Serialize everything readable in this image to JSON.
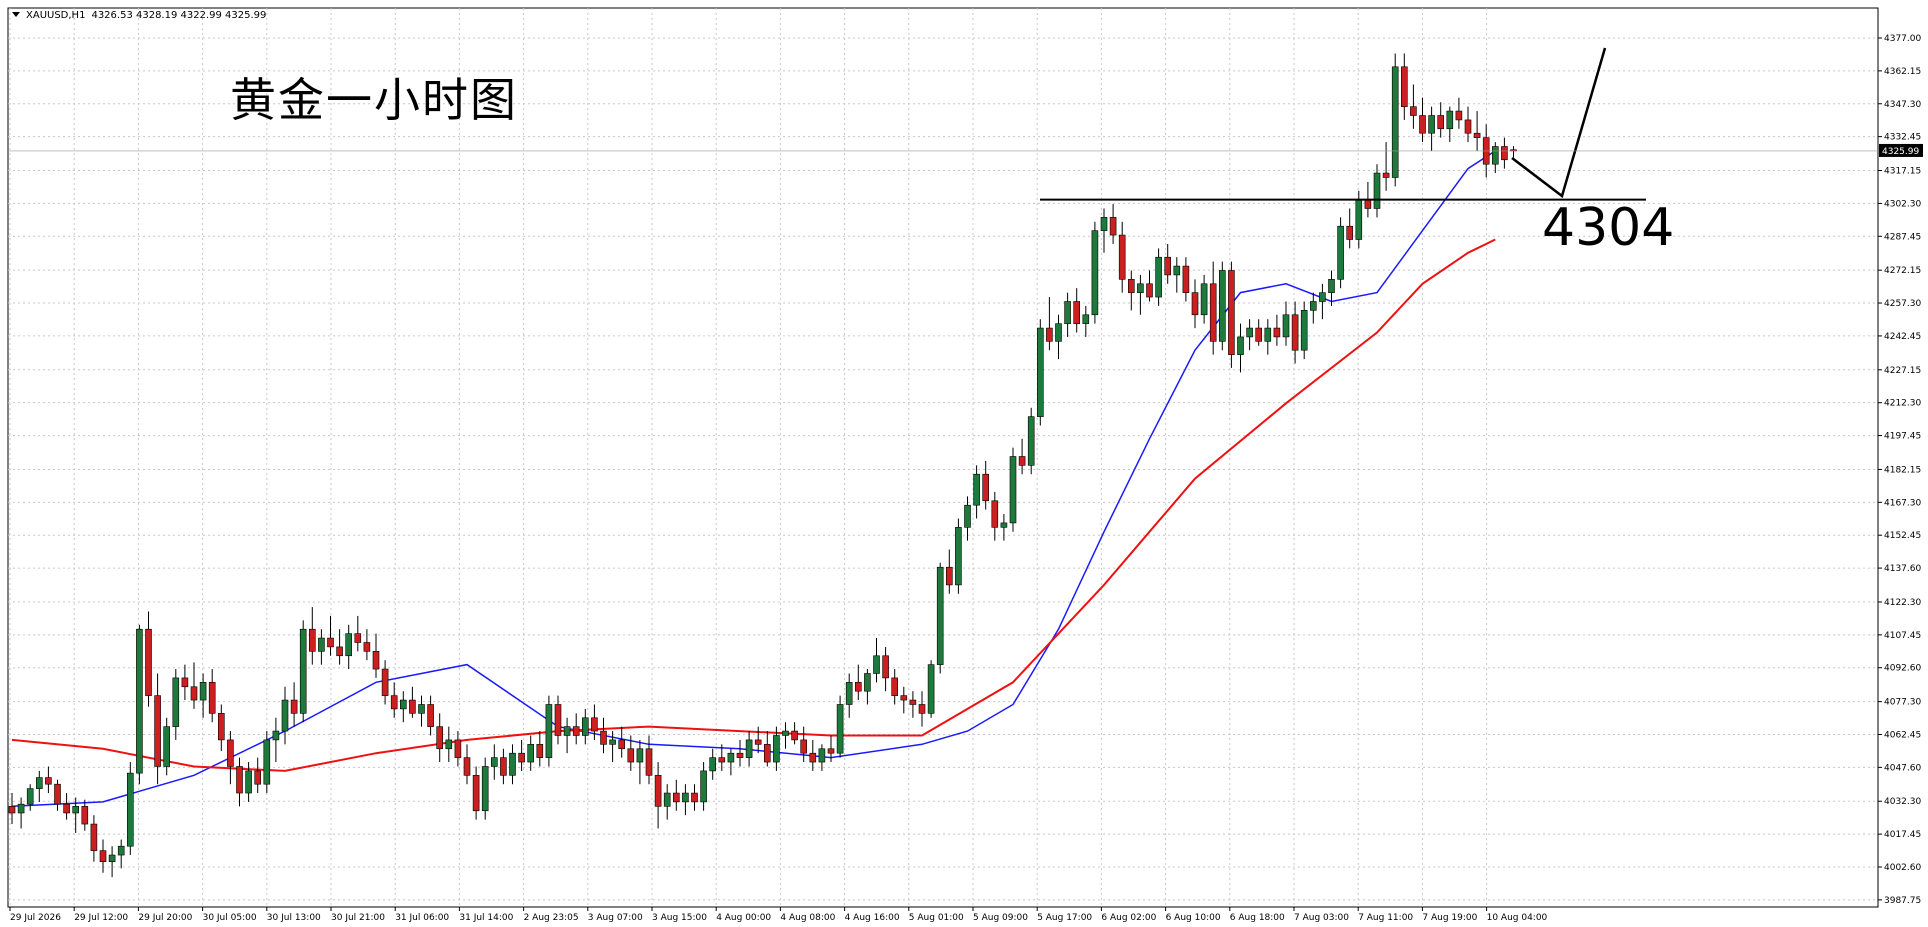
{
  "header": {
    "symbol": "XAUUSD,H1",
    "ohlc": "4326.53 4328.19 4322.99 4325.99"
  },
  "annotation": {
    "title": "黄金一小时图",
    "level_label": "4304"
  },
  "colors": {
    "bull_candle": "#1e7a3c",
    "bear_candle": "#cc1f1f",
    "ma_fast": "#1a1aff",
    "ma_slow": "#ee1111",
    "level_line": "#000000",
    "grid": "#c8c8c8",
    "price_tag_bg": "#000000"
  },
  "chart_data": {
    "type": "candlestick",
    "symbol": "XAUUSD",
    "timeframe": "H1",
    "ylim": [
      3987.7,
      4377.0
    ],
    "y_ticks": [
      "4377.00",
      "4362.15",
      "4347.30",
      "4332.45",
      "4317.15",
      "4302.30",
      "4287.45",
      "4272.15",
      "4257.30",
      "4242.45",
      "4227.15",
      "4212.30",
      "4197.45",
      "4182.15",
      "4167.30",
      "4152.45",
      "4137.60",
      "4122.30",
      "4107.45",
      "4092.60",
      "4077.30",
      "4062.45",
      "4047.60",
      "4032.30",
      "4017.45",
      "4002.60",
      "3987.75"
    ],
    "x_ticks": [
      "29 Jul 2026",
      "29 Jul 12:00",
      "29 Jul 20:00",
      "30 Jul 05:00",
      "30 Jul 13:00",
      "30 Jul 21:00",
      "31 Jul 06:00",
      "31 Jul 14:00",
      "2 Aug 23:05",
      "3 Aug 07:00",
      "3 Aug 15:00",
      "4 Aug 00:00",
      "4 Aug 08:00",
      "4 Aug 16:00",
      "5 Aug 01:00",
      "5 Aug 09:00",
      "5 Aug 17:00",
      "6 Aug 02:00",
      "6 Aug 10:00",
      "6 Aug 18:00",
      "7 Aug 03:00",
      "7 Aug 11:00",
      "7 Aug 19:00",
      "10 Aug 04:00"
    ],
    "current_price": 4325.99,
    "support_level": 4304,
    "grid": true,
    "candles": [
      [
        4030,
        4036,
        4022,
        4027
      ],
      [
        4027,
        4034,
        4020,
        4031
      ],
      [
        4031,
        4040,
        4028,
        4038
      ],
      [
        4038,
        4046,
        4032,
        4043
      ],
      [
        4043,
        4048,
        4036,
        4040
      ],
      [
        4040,
        4042,
        4028,
        4031
      ],
      [
        4031,
        4036,
        4024,
        4027
      ],
      [
        4027,
        4034,
        4018,
        4030
      ],
      [
        4030,
        4033,
        4019,
        4022
      ],
      [
        4022,
        4026,
        4005,
        4010
      ],
      [
        4010,
        4015,
        4000,
        4005
      ],
      [
        4005,
        4012,
        3998,
        4008
      ],
      [
        4008,
        4015,
        4002,
        4012
      ],
      [
        4012,
        4050,
        4008,
        4045
      ],
      [
        4045,
        4112,
        4040,
        4110
      ],
      [
        4110,
        4118,
        4075,
        4080
      ],
      [
        4080,
        4090,
        4040,
        4048
      ],
      [
        4048,
        4070,
        4044,
        4066
      ],
      [
        4066,
        4092,
        4060,
        4088
      ],
      [
        4088,
        4094,
        4078,
        4084
      ],
      [
        4084,
        4095,
        4074,
        4078
      ],
      [
        4078,
        4090,
        4070,
        4086
      ],
      [
        4086,
        4092,
        4068,
        4072
      ],
      [
        4072,
        4076,
        4055,
        4060
      ],
      [
        4060,
        4064,
        4040,
        4048
      ],
      [
        4048,
        4052,
        4030,
        4036
      ],
      [
        4036,
        4050,
        4032,
        4046
      ],
      [
        4046,
        4052,
        4036,
        4040
      ],
      [
        4040,
        4064,
        4036,
        4060
      ],
      [
        4060,
        4070,
        4050,
        4064
      ],
      [
        4064,
        4084,
        4058,
        4078
      ],
      [
        4078,
        4086,
        4066,
        4072
      ],
      [
        4072,
        4114,
        4068,
        4110
      ],
      [
        4110,
        4120,
        4094,
        4100
      ],
      [
        4100,
        4110,
        4094,
        4106
      ],
      [
        4106,
        4116,
        4098,
        4102
      ],
      [
        4102,
        4110,
        4094,
        4098
      ],
      [
        4098,
        4112,
        4092,
        4108
      ],
      [
        4108,
        4116,
        4100,
        4104
      ],
      [
        4104,
        4110,
        4096,
        4100
      ],
      [
        4100,
        4108,
        4088,
        4092
      ],
      [
        4092,
        4096,
        4076,
        4080
      ],
      [
        4080,
        4086,
        4070,
        4074
      ],
      [
        4074,
        4082,
        4068,
        4078
      ],
      [
        4078,
        4084,
        4070,
        4072
      ],
      [
        4072,
        4080,
        4066,
        4076
      ],
      [
        4076,
        4080,
        4062,
        4066
      ],
      [
        4066,
        4072,
        4050,
        4056
      ],
      [
        4056,
        4066,
        4050,
        4060
      ],
      [
        4060,
        4064,
        4048,
        4052
      ],
      [
        4052,
        4058,
        4040,
        4044
      ],
      [
        4044,
        4048,
        4024,
        4028
      ],
      [
        4028,
        4052,
        4024,
        4048
      ],
      [
        4048,
        4058,
        4042,
        4052
      ],
      [
        4052,
        4056,
        4040,
        4044
      ],
      [
        4044,
        4058,
        4040,
        4054
      ],
      [
        4054,
        4060,
        4046,
        4050
      ],
      [
        4050,
        4062,
        4046,
        4058
      ],
      [
        4058,
        4064,
        4048,
        4052
      ],
      [
        4052,
        4080,
        4048,
        4076
      ],
      [
        4076,
        4080,
        4058,
        4062
      ],
      [
        4062,
        4070,
        4054,
        4066
      ],
      [
        4066,
        4072,
        4058,
        4062
      ],
      [
        4062,
        4074,
        4058,
        4070
      ],
      [
        4070,
        4076,
        4060,
        4064
      ],
      [
        4064,
        4070,
        4054,
        4058
      ],
      [
        4058,
        4064,
        4050,
        4060
      ],
      [
        4060,
        4066,
        4052,
        4056
      ],
      [
        4056,
        4062,
        4046,
        4050
      ],
      [
        4050,
        4060,
        4040,
        4056
      ],
      [
        4056,
        4062,
        4040,
        4044
      ],
      [
        4044,
        4050,
        4020,
        4030
      ],
      [
        4030,
        4040,
        4024,
        4036
      ],
      [
        4036,
        4042,
        4028,
        4032
      ],
      [
        4032,
        4040,
        4026,
        4036
      ],
      [
        4036,
        4040,
        4028,
        4032
      ],
      [
        4032,
        4050,
        4028,
        4046
      ],
      [
        4046,
        4056,
        4042,
        4052
      ],
      [
        4052,
        4058,
        4046,
        4050
      ],
      [
        4050,
        4056,
        4044,
        4054
      ],
      [
        4054,
        4060,
        4048,
        4052
      ],
      [
        4052,
        4064,
        4048,
        4060
      ],
      [
        4060,
        4066,
        4054,
        4058
      ],
      [
        4058,
        4064,
        4048,
        4050
      ],
      [
        4050,
        4066,
        4046,
        4062
      ],
      [
        4062,
        4068,
        4056,
        4064
      ],
      [
        4064,
        4068,
        4058,
        4060
      ],
      [
        4060,
        4066,
        4050,
        4054
      ],
      [
        4054,
        4060,
        4046,
        4050
      ],
      [
        4050,
        4058,
        4046,
        4056
      ],
      [
        4056,
        4062,
        4050,
        4054
      ],
      [
        4054,
        4080,
        4052,
        4076
      ],
      [
        4076,
        4090,
        4070,
        4086
      ],
      [
        4086,
        4094,
        4078,
        4082
      ],
      [
        4082,
        4092,
        4076,
        4090
      ],
      [
        4090,
        4106,
        4086,
        4098
      ],
      [
        4098,
        4102,
        4082,
        4088
      ],
      [
        4088,
        4092,
        4076,
        4080
      ],
      [
        4080,
        4084,
        4072,
        4078
      ],
      [
        4078,
        4082,
        4070,
        4076
      ],
      [
        4076,
        4082,
        4066,
        4072
      ],
      [
        4072,
        4096,
        4070,
        4094
      ],
      [
        4094,
        4140,
        4090,
        4138
      ],
      [
        4138,
        4146,
        4126,
        4130
      ],
      [
        4130,
        4160,
        4126,
        4156
      ],
      [
        4156,
        4170,
        4150,
        4166
      ],
      [
        4166,
        4184,
        4160,
        4180
      ],
      [
        4180,
        4186,
        4164,
        4168
      ],
      [
        4168,
        4172,
        4150,
        4156
      ],
      [
        4156,
        4162,
        4150,
        4158
      ],
      [
        4158,
        4192,
        4154,
        4188
      ],
      [
        4188,
        4196,
        4180,
        4184
      ],
      [
        4184,
        4210,
        4180,
        4206
      ],
      [
        4206,
        4250,
        4202,
        4246
      ],
      [
        4246,
        4260,
        4236,
        4240
      ],
      [
        4240,
        4252,
        4232,
        4248
      ],
      [
        4248,
        4262,
        4242,
        4258
      ],
      [
        4258,
        4264,
        4244,
        4248
      ],
      [
        4248,
        4256,
        4242,
        4252
      ],
      [
        4252,
        4294,
        4248,
        4290
      ],
      [
        4290,
        4300,
        4280,
        4296
      ],
      [
        4296,
        4302,
        4284,
        4288
      ],
      [
        4288,
        4294,
        4262,
        4268
      ],
      [
        4268,
        4272,
        4254,
        4262
      ],
      [
        4262,
        4270,
        4252,
        4266
      ],
      [
        4266,
        4272,
        4258,
        4260
      ],
      [
        4260,
        4282,
        4256,
        4278
      ],
      [
        4278,
        4284,
        4266,
        4270
      ],
      [
        4270,
        4278,
        4262,
        4274
      ],
      [
        4274,
        4278,
        4258,
        4262
      ],
      [
        4262,
        4268,
        4246,
        4252
      ],
      [
        4252,
        4270,
        4248,
        4266
      ],
      [
        4266,
        4276,
        4234,
        4240
      ],
      [
        4240,
        4276,
        4236,
        4272
      ],
      [
        4272,
        4276,
        4228,
        4234
      ],
      [
        4234,
        4248,
        4226,
        4242
      ],
      [
        4242,
        4250,
        4236,
        4246
      ],
      [
        4246,
        4250,
        4238,
        4240
      ],
      [
        4240,
        4250,
        4234,
        4246
      ],
      [
        4246,
        4252,
        4238,
        4242
      ],
      [
        4242,
        4258,
        4238,
        4252
      ],
      [
        4252,
        4258,
        4230,
        4236
      ],
      [
        4236,
        4258,
        4232,
        4254
      ],
      [
        4254,
        4262,
        4248,
        4258
      ],
      [
        4258,
        4266,
        4250,
        4262
      ],
      [
        4262,
        4272,
        4256,
        4268
      ],
      [
        4268,
        4296,
        4264,
        4292
      ],
      [
        4292,
        4300,
        4282,
        4286
      ],
      [
        4286,
        4308,
        4282,
        4304
      ],
      [
        4304,
        4312,
        4296,
        4300
      ],
      [
        4300,
        4320,
        4296,
        4316
      ],
      [
        4316,
        4330,
        4308,
        4314
      ],
      [
        4314,
        4370,
        4310,
        4364
      ],
      [
        4364,
        4370,
        4340,
        4346
      ],
      [
        4346,
        4356,
        4336,
        4342
      ],
      [
        4342,
        4350,
        4330,
        4334
      ],
      [
        4334,
        4346,
        4326,
        4342
      ],
      [
        4342,
        4348,
        4332,
        4336
      ],
      [
        4336,
        4346,
        4330,
        4344
      ],
      [
        4344,
        4350,
        4336,
        4340
      ],
      [
        4340,
        4346,
        4330,
        4334
      ],
      [
        4334,
        4344,
        4326,
        4332
      ],
      [
        4332,
        4338,
        4314,
        4320
      ],
      [
        4320,
        4330,
        4316,
        4328
      ],
      [
        4328,
        4332,
        4318,
        4322
      ],
      [
        4326.53,
        4328.19,
        4322.99,
        4325.99
      ]
    ],
    "series": [
      {
        "name": "",
        "color": "#1a1aff",
        "x": [
          0,
          10,
          20,
          30,
          40,
          50,
          60,
          70,
          80,
          90,
          100,
          105,
          110,
          115,
          120,
          125,
          130,
          135,
          140,
          145,
          150,
          155,
          160,
          163
        ],
        "values": [
          4030,
          4032,
          4044,
          4064,
          4086,
          4094,
          4066,
          4058,
          4056,
          4052,
          4058,
          4064,
          4076,
          4110,
          4154,
          4196,
          4236,
          4262,
          4266,
          4258,
          4262,
          4290,
          4318,
          4326
        ]
      },
      {
        "name": "",
        "color": "#ee1111",
        "x": [
          0,
          10,
          20,
          30,
          40,
          50,
          60,
          70,
          80,
          90,
          100,
          110,
          120,
          130,
          140,
          150,
          155,
          160,
          163
        ],
        "values": [
          4060,
          4056,
          4048,
          4046,
          4054,
          4060,
          4064,
          4066,
          4064,
          4062,
          4062,
          4086,
          4130,
          4178,
          4212,
          4244,
          4266,
          4280,
          4286
        ]
      }
    ]
  }
}
